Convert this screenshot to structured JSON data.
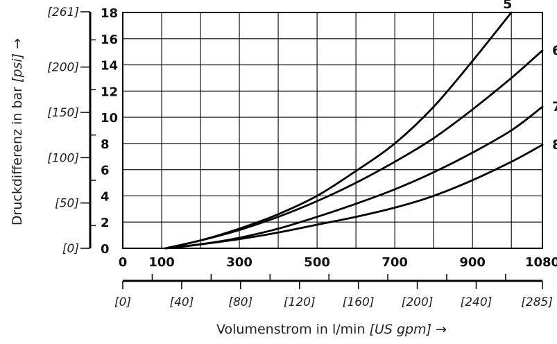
{
  "chart_data": {
    "type": "line",
    "title": "",
    "x": {
      "label_main": "Volumenstrom in l/min ",
      "label_unit": "[US gpm]",
      "label_arrow": " →",
      "range": [
        0,
        1080
      ],
      "grid": [
        0,
        100,
        200,
        300,
        400,
        500,
        600,
        700,
        800,
        900,
        1000,
        1080
      ],
      "tick_labels": [
        "0",
        "100",
        "300",
        "500",
        "700",
        "900",
        "1080"
      ],
      "tick_values": [
        0,
        100,
        300,
        500,
        700,
        900,
        1080
      ]
    },
    "y": {
      "label_main": "Druckdifferenz in bar ",
      "label_unit": "[psi]",
      "label_arrow": " →",
      "range": [
        0,
        18
      ],
      "grid": [
        0,
        2,
        4,
        6,
        8,
        10,
        12,
        14,
        16,
        18
      ],
      "tick_labels": [
        "0",
        "2",
        "4",
        "6",
        "8",
        "10",
        "12",
        "14",
        "16",
        "18"
      ]
    },
    "y_secondary": {
      "unit": "psi",
      "tick_labels": [
        "[0]",
        "[50]",
        "[100]",
        "[150]",
        "[200]",
        "[261]"
      ],
      "tick_values": [
        0,
        50,
        100,
        150,
        200,
        261
      ],
      "minor_values": [
        25,
        75,
        125,
        175,
        230
      ]
    },
    "x_secondary": {
      "unit": "US gpm",
      "tick_labels": [
        "[0]",
        "[40]",
        "[80]",
        "[120]",
        "[160]",
        "[200]",
        "[240]",
        "[285]"
      ],
      "tick_values": [
        0,
        40,
        80,
        120,
        160,
        200,
        240,
        285
      ],
      "minor_values": [
        20,
        60,
        100,
        140,
        180,
        220,
        260
      ]
    },
    "grid": true,
    "series": [
      {
        "name": "5",
        "x": [
          110,
          200,
          300,
          400,
          500,
          600,
          700,
          800,
          900,
          1000
        ],
        "y": [
          0,
          0.6,
          1.5,
          2.6,
          4.0,
          5.9,
          8.0,
          10.8,
          14.3,
          18.0
        ]
      },
      {
        "name": "6",
        "x": [
          110,
          200,
          300,
          400,
          500,
          600,
          700,
          800,
          900,
          1000,
          1080
        ],
        "y": [
          0,
          0.6,
          1.4,
          2.4,
          3.6,
          5.0,
          6.6,
          8.4,
          10.6,
          13.0,
          15.1
        ]
      },
      {
        "name": "7",
        "x": [
          110,
          200,
          300,
          400,
          500,
          600,
          700,
          800,
          900,
          1000,
          1080
        ],
        "y": [
          0,
          0.3,
          0.8,
          1.5,
          2.4,
          3.4,
          4.5,
          5.8,
          7.3,
          9.0,
          10.8
        ]
      },
      {
        "name": "8",
        "x": [
          110,
          200,
          300,
          400,
          500,
          600,
          700,
          800,
          900,
          1000,
          1080
        ],
        "y": [
          0,
          0.3,
          0.7,
          1.2,
          1.8,
          2.4,
          3.1,
          4.0,
          5.2,
          6.6,
          7.9
        ]
      }
    ]
  }
}
